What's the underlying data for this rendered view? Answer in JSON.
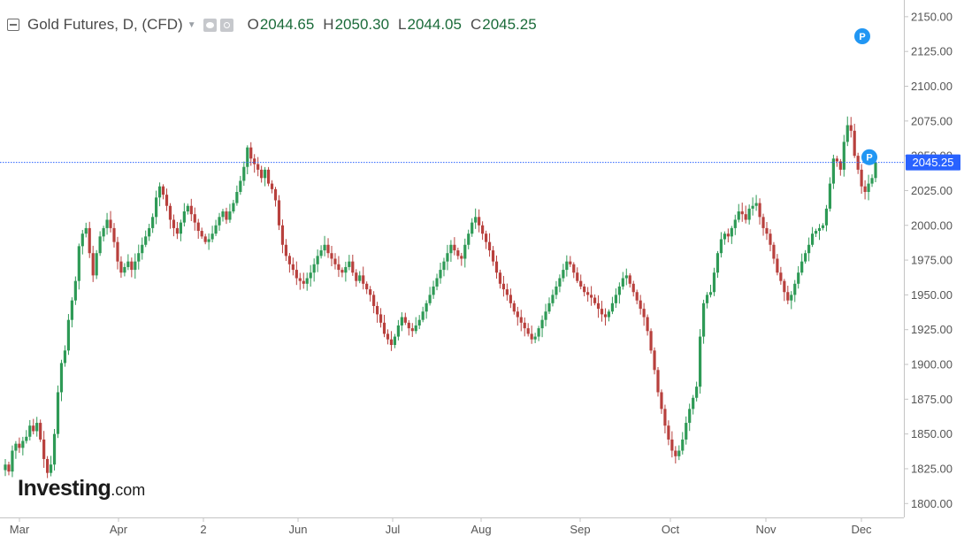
{
  "header": {
    "title": "Gold Futures, D, (CFD)",
    "ohlc": [
      {
        "label": "O",
        "value": "2044.65"
      },
      {
        "label": "H",
        "value": "2050.30"
      },
      {
        "label": "L",
        "value": "2044.05"
      },
      {
        "label": "C",
        "value": "2045.25"
      }
    ]
  },
  "logo": {
    "main": "Investing",
    "domain": ".com"
  },
  "colors": {
    "up": "#2e9a56",
    "down": "#b8403d",
    "price_line": "#2962ff",
    "axis": "#555555",
    "grid_border": "#c4c4c4"
  },
  "chart_data": {
    "type": "candlestick",
    "y_range": [
      1790,
      2162
    ],
    "y_ticks": [
      "1800.00",
      "1825.00",
      "1850.00",
      "1875.00",
      "1900.00",
      "1925.00",
      "1950.00",
      "1975.00",
      "2000.00",
      "2025.00",
      "2050.00",
      "2075.00",
      "2100.00",
      "2125.00",
      "2150.00"
    ],
    "x_ticks": [
      "Mar",
      "Apr",
      "2",
      "Jun",
      "Jul",
      "Aug",
      "Sep",
      "Oct",
      "Nov",
      "Dec"
    ],
    "last_price_label": "2045.25",
    "markers": [
      "P",
      "P"
    ],
    "closes": [
      1828,
      1823,
      1838,
      1843,
      1840,
      1845,
      1848,
      1856,
      1852,
      1858,
      1846,
      1832,
      1822,
      1828,
      1850,
      1880,
      1901,
      1910,
      1932,
      1946,
      1960,
      1985,
      1994,
      1998,
      1980,
      1964,
      1980,
      1992,
      1998,
      2004,
      1998,
      1988,
      1974,
      1966,
      1970,
      1974,
      1968,
      1974,
      1980,
      1986,
      1992,
      1998,
      2006,
      2020,
      2028,
      2022,
      2014,
      2004,
      1998,
      1994,
      2002,
      2010,
      2014,
      2008,
      2002,
      1996,
      1992,
      1988,
      1990,
      1994,
      2000,
      2006,
      2010,
      2004,
      2010,
      2016,
      2024,
      2032,
      2042,
      2056,
      2048,
      2044,
      2040,
      2034,
      2040,
      2030,
      2026,
      2018,
      2000,
      1986,
      1978,
      1972,
      1968,
      1962,
      1960,
      1958,
      1962,
      1966,
      1972,
      1978,
      1982,
      1986,
      1980,
      1976,
      1972,
      1968,
      1966,
      1970,
      1974,
      1966,
      1960,
      1964,
      1958,
      1954,
      1950,
      1942,
      1936,
      1930,
      1922,
      1918,
      1914,
      1920,
      1928,
      1934,
      1930,
      1926,
      1924,
      1928,
      1932,
      1938,
      1944,
      1950,
      1956,
      1962,
      1968,
      1974,
      1980,
      1986,
      1982,
      1978,
      1976,
      1986,
      1994,
      2002,
      2006,
      2000,
      1994,
      1988,
      1982,
      1974,
      1966,
      1958,
      1954,
      1950,
      1944,
      1938,
      1934,
      1930,
      1926,
      1922,
      1918,
      1920,
      1926,
      1932,
      1938,
      1944,
      1950,
      1956,
      1962,
      1968,
      1974,
      1972,
      1966,
      1960,
      1956,
      1952,
      1950,
      1948,
      1944,
      1940,
      1936,
      1934,
      1938,
      1944,
      1950,
      1956,
      1962,
      1964,
      1958,
      1952,
      1946,
      1940,
      1934,
      1924,
      1910,
      1896,
      1880,
      1868,
      1856,
      1846,
      1838,
      1834,
      1838,
      1846,
      1858,
      1868,
      1876,
      1884,
      1920,
      1944,
      1950,
      1952,
      1966,
      1980,
      1990,
      1994,
      1992,
      1998,
      2004,
      2010,
      2008,
      2004,
      2012,
      2014,
      2016,
      2006,
      1998,
      1994,
      1986,
      1976,
      1966,
      1960,
      1952,
      1946,
      1950,
      1958,
      1966,
      1974,
      1980,
      1986,
      1994,
      1996,
      1998,
      2000,
      2012,
      2030,
      2048,
      2046,
      2040,
      2060,
      2072,
      2068,
      2050,
      2040,
      2028,
      2024,
      2030,
      2034,
      2045
    ]
  }
}
